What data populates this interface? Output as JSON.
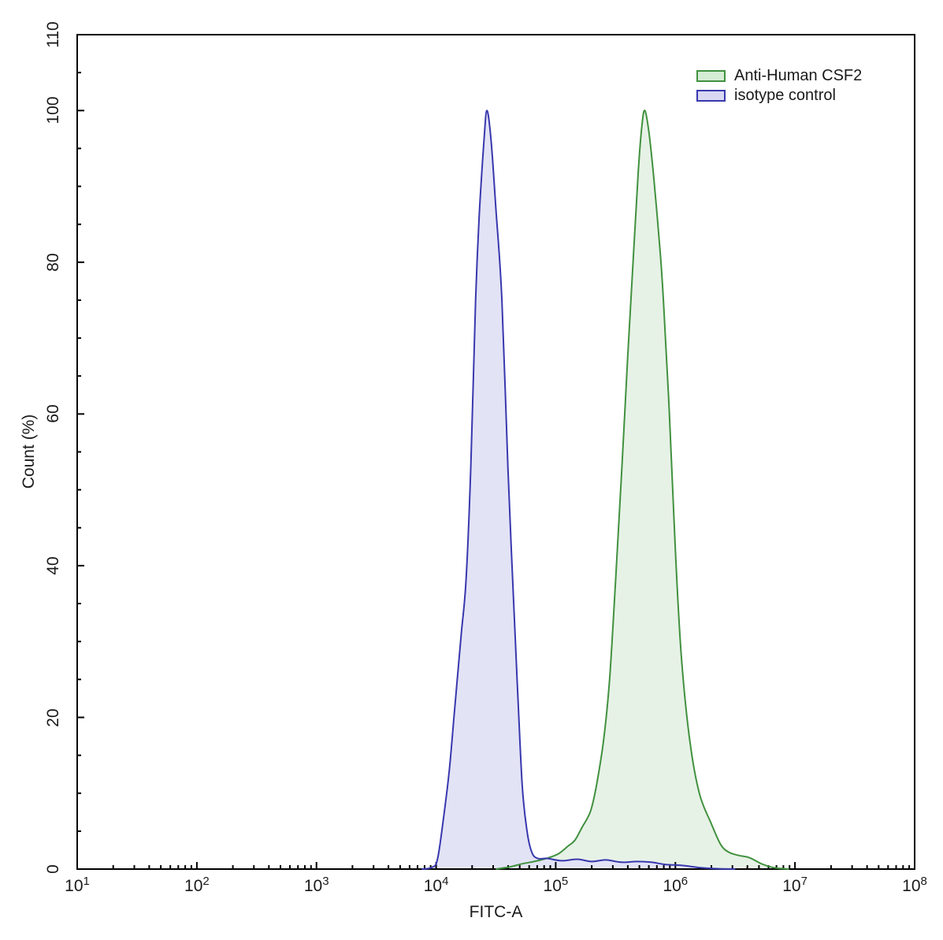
{
  "figure": {
    "background": "#ffffff",
    "axis_color": "#000000",
    "xlabel": "FITC-A",
    "ylabel": "Count (%)"
  },
  "legend": {
    "position": "top-right",
    "items": [
      {
        "label": "Anti-Human CSF2",
        "stroke": "#41913f",
        "fill": "#d5ecd5"
      },
      {
        "label": "isotype control",
        "stroke": "#3838ae",
        "fill": "#d8d8f3"
      }
    ]
  },
  "chart_data": {
    "type": "area",
    "title": "",
    "xlabel": "FITC-A",
    "ylabel": "Count (%)",
    "x_scale": "log10",
    "xlim_log10": [
      1,
      8
    ],
    "ylim": [
      0,
      110
    ],
    "grid": false,
    "x_major_tick_exponents": [
      1,
      2,
      3,
      4,
      5,
      6,
      7,
      8
    ],
    "x_minor_tick_multiples": [
      2,
      3,
      4,
      5,
      6,
      7,
      8,
      9
    ],
    "y_major_ticks": [
      0,
      20,
      40,
      60,
      80,
      100,
      110
    ],
    "y_minor_tick_step": 5,
    "legend_position": "top-right",
    "series": [
      {
        "name": "Anti-Human CSF2",
        "stroke": "#41913f",
        "fill": "#e7f2e7",
        "peak_log10": 5.745,
        "peak_count_pct": 100,
        "points_log10_pct": [
          [
            4.5,
            0
          ],
          [
            4.62,
            0.3
          ],
          [
            4.72,
            0.7
          ],
          [
            4.82,
            1.0
          ],
          [
            4.92,
            1.4
          ],
          [
            5.02,
            2.0
          ],
          [
            5.1,
            3.0
          ],
          [
            5.16,
            3.8
          ],
          [
            5.22,
            5.5
          ],
          [
            5.29,
            7.6
          ],
          [
            5.34,
            11
          ],
          [
            5.4,
            17
          ],
          [
            5.45,
            25
          ],
          [
            5.5,
            38
          ],
          [
            5.55,
            52
          ],
          [
            5.6,
            67
          ],
          [
            5.65,
            81
          ],
          [
            5.69,
            92
          ],
          [
            5.72,
            98
          ],
          [
            5.745,
            100
          ],
          [
            5.78,
            97
          ],
          [
            5.82,
            91
          ],
          [
            5.87,
            82
          ],
          [
            5.9,
            75
          ],
          [
            5.95,
            60
          ],
          [
            6.0,
            42
          ],
          [
            6.05,
            28
          ],
          [
            6.12,
            17
          ],
          [
            6.2,
            10
          ],
          [
            6.3,
            6
          ],
          [
            6.38,
            3.2
          ],
          [
            6.45,
            2.2
          ],
          [
            6.53,
            1.8
          ],
          [
            6.62,
            1.5
          ],
          [
            6.72,
            0.7
          ],
          [
            6.82,
            0.2
          ],
          [
            6.95,
            0
          ]
        ]
      },
      {
        "name": "isotype control",
        "stroke": "#3838ae",
        "fill": "#e3e3f6",
        "peak_log10": 4.425,
        "peak_count_pct": 100,
        "points_log10_pct": [
          [
            3.88,
            0
          ],
          [
            3.96,
            0.2
          ],
          [
            4.01,
            1.2
          ],
          [
            4.06,
            6.5
          ],
          [
            4.11,
            13
          ],
          [
            4.16,
            22
          ],
          [
            4.21,
            31
          ],
          [
            4.25,
            38
          ],
          [
            4.29,
            53
          ],
          [
            4.33,
            75
          ],
          [
            4.36,
            86
          ],
          [
            4.4,
            96
          ],
          [
            4.425,
            100
          ],
          [
            4.46,
            96
          ],
          [
            4.5,
            87
          ],
          [
            4.55,
            75
          ],
          [
            4.6,
            53
          ],
          [
            4.64,
            38
          ],
          [
            4.68,
            24
          ],
          [
            4.72,
            11
          ],
          [
            4.76,
            5
          ],
          [
            4.8,
            2.2
          ],
          [
            4.85,
            1.4
          ],
          [
            4.93,
            1.4
          ],
          [
            5.05,
            1.1
          ],
          [
            5.18,
            1.3
          ],
          [
            5.3,
            1.0
          ],
          [
            5.42,
            1.2
          ],
          [
            5.55,
            0.9
          ],
          [
            5.68,
            1.0
          ],
          [
            5.8,
            0.9
          ],
          [
            5.92,
            0.6
          ],
          [
            6.05,
            0.5
          ],
          [
            6.2,
            0.2
          ],
          [
            6.35,
            0.05
          ],
          [
            6.5,
            0
          ]
        ]
      }
    ]
  }
}
